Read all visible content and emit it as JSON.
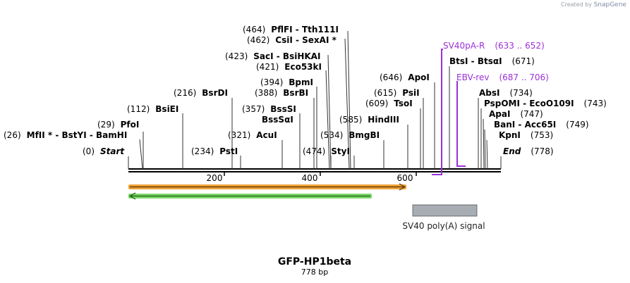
{
  "credit": {
    "created_by": "Created by",
    "brand": "SnapGene"
  },
  "map": {
    "name": "GFP-HP1beta",
    "length_text": "778 bp",
    "length": 778,
    "ticks": [
      200,
      400,
      600
    ],
    "sites": [
      {
        "pos": "(26)",
        "label": "MfII *  -  BstYI  -  BamHI",
        "bp": 26,
        "italic": false
      },
      {
        "pos": "(0)",
        "label": "Start",
        "bp": 0,
        "italic": true
      },
      {
        "pos": "(29)",
        "label": "PfoI",
        "bp": 29,
        "italic": false
      },
      {
        "pos": "(112)",
        "label": "BsiEI",
        "bp": 112,
        "italic": false
      },
      {
        "pos": "(216)",
        "label": "BsrDI",
        "bp": 216,
        "italic": false
      },
      {
        "pos": "(234)",
        "label": "PstI",
        "bp": 234,
        "italic": false
      },
      {
        "pos": "(321)",
        "label": "AcuI",
        "bp": 321,
        "italic": false
      },
      {
        "pos": "(357)",
        "label": "BssSI",
        "bp": 357,
        "italic": false
      },
      {
        "pos": "",
        "label": "BssSαI",
        "bp": 357,
        "italic": false
      },
      {
        "pos": "(388)",
        "label": "BsrBI",
        "bp": 388,
        "italic": false
      },
      {
        "pos": "(394)",
        "label": "BpmI",
        "bp": 394,
        "italic": false
      },
      {
        "pos": "(421)",
        "label": "Eco53kI",
        "bp": 421,
        "italic": false
      },
      {
        "pos": "(423)",
        "label": "SacI  -  BsiHKAI",
        "bp": 423,
        "italic": false
      },
      {
        "pos": "(462)",
        "label": "CsiI  -  SexAI *",
        "bp": 462,
        "italic": false
      },
      {
        "pos": "(464)",
        "label": "PflFI  -  Tth111I",
        "bp": 464,
        "italic": false
      },
      {
        "pos": "(474)",
        "label": "StyI",
        "bp": 474,
        "italic": false
      },
      {
        "pos": "(534)",
        "label": "BmgBI",
        "bp": 534,
        "italic": false
      },
      {
        "pos": "(585)",
        "label": "HindIII",
        "bp": 585,
        "italic": false
      },
      {
        "pos": "(609)",
        "label": "TsoI",
        "bp": 609,
        "italic": false
      },
      {
        "pos": "(615)",
        "label": "PsiI",
        "bp": 615,
        "italic": false
      },
      {
        "pos": "(646)",
        "label": "ApoI",
        "bp": 646,
        "italic": false
      },
      {
        "pos": "(671)",
        "label": "BtsI  -  BtsαI",
        "bp": 671,
        "italic": false
      },
      {
        "pos": "(734)",
        "label": "AbsI",
        "bp": 734,
        "italic": false
      },
      {
        "pos": "(743)",
        "label": "PspOMI  -  EcoO109I",
        "bp": 743,
        "italic": false
      },
      {
        "pos": "(747)",
        "label": "ApaI",
        "bp": 747,
        "italic": false
      },
      {
        "pos": "(749)",
        "label": "BanI  -  Acc65I",
        "bp": 749,
        "italic": false
      },
      {
        "pos": "(753)",
        "label": "KpnI",
        "bp": 753,
        "italic": false
      },
      {
        "pos": "(778)",
        "label": "End",
        "bp": 778,
        "italic": true
      }
    ],
    "primers": [
      {
        "label": "SV40pA-R",
        "range": "(633 .. 652)",
        "color": "#9b30d9"
      },
      {
        "label": "EBV-rev",
        "range": "(687 .. 706)",
        "color": "#9b30d9"
      }
    ],
    "features": [
      {
        "label": "SV40 poly(A) signal",
        "color": "#a7adb3"
      }
    ],
    "arrow_colors": {
      "orange": "#f0a23a",
      "green": "#3cb043"
    }
  }
}
